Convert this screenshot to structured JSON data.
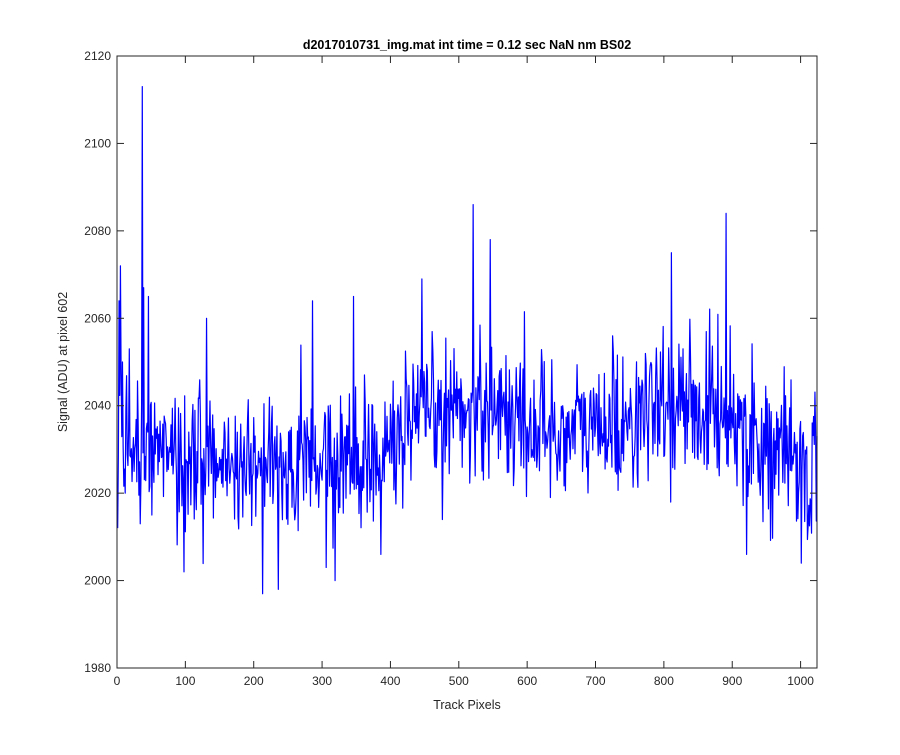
{
  "chart_data": {
    "type": "line",
    "title": "d2017010731_img.mat int time = 0.12 sec  NaN nm BS02",
    "xlabel": "Track Pixels",
    "ylabel": "Signal (ADU) at pixel 602",
    "xlim": [
      0,
      1024
    ],
    "ylim": [
      1980,
      2120
    ],
    "xticks": [
      0,
      100,
      200,
      300,
      400,
      500,
      600,
      700,
      800,
      900,
      1000
    ],
    "yticks": [
      1980,
      2000,
      2020,
      2040,
      2060,
      2080,
      2100,
      2120
    ],
    "grid": false,
    "legend": "none",
    "line_color": "#0000ff",
    "n_points": 1024,
    "trend_anchors": [
      [
        0,
        2032
      ],
      [
        50,
        2031
      ],
      [
        100,
        2029
      ],
      [
        150,
        2028
      ],
      [
        200,
        2026
      ],
      [
        250,
        2026
      ],
      [
        300,
        2027
      ],
      [
        350,
        2028
      ],
      [
        400,
        2031
      ],
      [
        450,
        2036
      ],
      [
        500,
        2040
      ],
      [
        550,
        2040
      ],
      [
        600,
        2036
      ],
      [
        650,
        2034
      ],
      [
        700,
        2035
      ],
      [
        750,
        2037
      ],
      [
        800,
        2039
      ],
      [
        850,
        2040
      ],
      [
        900,
        2038
      ],
      [
        950,
        2031
      ],
      [
        1000,
        2025
      ],
      [
        1023,
        2024
      ]
    ],
    "noise_amplitude": 8,
    "notable_points": [
      {
        "x": 0,
        "y": 2012
      },
      {
        "x": 2,
        "y": 2064
      },
      {
        "x": 4,
        "y": 2072
      },
      {
        "x": 7,
        "y": 2050
      },
      {
        "x": 11,
        "y": 2020
      },
      {
        "x": 17,
        "y": 2053
      },
      {
        "x": 33,
        "y": 2013
      },
      {
        "x": 36,
        "y": 2113
      },
      {
        "x": 38,
        "y": 2067
      },
      {
        "x": 45,
        "y": 2065
      },
      {
        "x": 50,
        "y": 2015
      },
      {
        "x": 97,
        "y": 2002
      },
      {
        "x": 130,
        "y": 2060
      },
      {
        "x": 212,
        "y": 1997
      },
      {
        "x": 235,
        "y": 1998
      },
      {
        "x": 285,
        "y": 2064
      },
      {
        "x": 305,
        "y": 2003
      },
      {
        "x": 318,
        "y": 2000
      },
      {
        "x": 345,
        "y": 2065
      },
      {
        "x": 385,
        "y": 2006
      },
      {
        "x": 445,
        "y": 2069
      },
      {
        "x": 520,
        "y": 2086
      },
      {
        "x": 545,
        "y": 2078
      },
      {
        "x": 810,
        "y": 2075
      },
      {
        "x": 890,
        "y": 2084
      },
      {
        "x": 920,
        "y": 2006
      },
      {
        "x": 1000,
        "y": 2004
      }
    ]
  }
}
